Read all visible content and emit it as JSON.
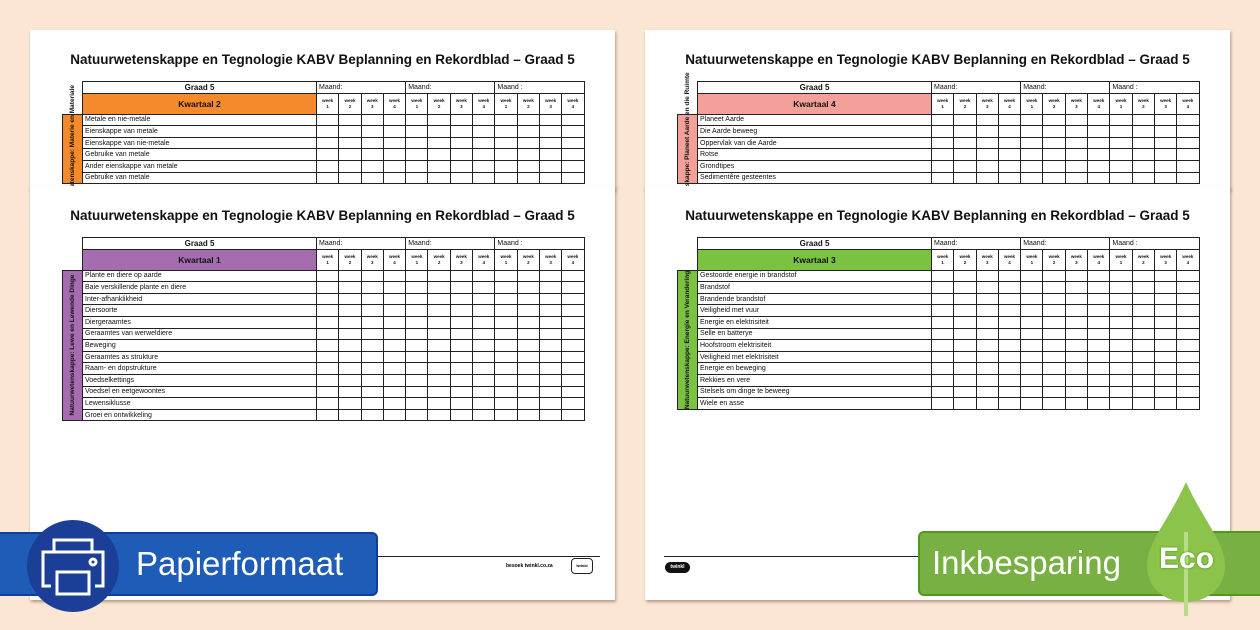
{
  "doc_title": "Natuurwetenskappe en Tegnologie KABV Beplanning en Rekordblad – Graad 5",
  "grade": "Graad 5",
  "month_label": [
    "Maand:",
    "Maand:",
    "Maand :"
  ],
  "week_label": "week",
  "weeks": [
    "1",
    "2",
    "3",
    "4"
  ],
  "pages": [
    {
      "quarter": "Kwartaal 2",
      "color": "#f58a2c",
      "side": "Natuurwetenskappe: Materie en Materiale",
      "topics": [
        "Metale en nie-metale",
        "Eienskappe van metale",
        "Eienskappe van nie-metale",
        "Gebruike van metale",
        "Ander eienskappe van metale",
        "Gebruike van metale"
      ]
    },
    {
      "quarter": "Kwartaal 4",
      "color": "#f4a09a",
      "side": "Natuurwetenskappe: Planeet Aarde en die Ruimte",
      "topics": [
        "Planeet Aarde",
        "Die Aarde beweeg",
        "Oppervlak van die Aarde",
        "Rotse",
        "Grondtipes",
        "Sedimentêre gesteentes"
      ]
    },
    {
      "quarter": "Kwartaal 1",
      "color": "#a56db0",
      "side": "Natuurwetenskappe: Lewe en Lewende Dinge",
      "topics": [
        "Plante en diere op aarde",
        "Baie verskillende plante en diere",
        "Inter-afhanklikheid",
        "Diersoorte",
        "Diergeraamtes",
        "Geraamtes van werweldiere",
        "Beweging",
        "Geraamtes as strukture",
        "Raam- en dopstrukture",
        "Voedselkettings",
        "Voedsel en eetgewoontes",
        "Lewensiklusse",
        "Groei en ontwikkeling"
      ]
    },
    {
      "quarter": "Kwartaal 3",
      "color": "#7bc142",
      "side": "Natuurwetenskappe: Energie en Verandering",
      "topics": [
        "Gestoorde energie in brandstof",
        "Brandstof",
        "Brandende brandstof",
        "Veiligheid met vuur",
        "Energie en elektrisiteit",
        "Selle en batterye",
        "Hoofstroom elektrisiteit",
        "Veiligheid met elektrisiteit",
        "Energie en beweging",
        "Rekkies en vere",
        "Stelsels om dinge te beweeg",
        "Wiele en asse"
      ]
    }
  ],
  "footer": {
    "url": "besoek twinkl.co.za",
    "logo": "twinkl"
  },
  "badges": {
    "paper": "Papierformaat",
    "ink": "Inkbesparing",
    "eco": "Eco",
    "paper_color": "#1f5cb8",
    "ink_color": "#79b043"
  }
}
